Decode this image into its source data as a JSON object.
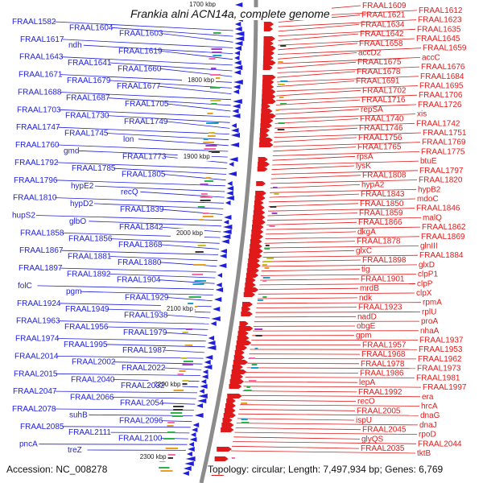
{
  "title": "Frankia alni ACN14a, complete genome",
  "accession": "Accession: NC_008278",
  "summary": "Topology: circular; Length: 7,497,934 bp; Genes: 6,769",
  "colors": {
    "left": "#1f1fdb",
    "right": "#e01a1a",
    "backbone": "#8c8c8c"
  },
  "ticks": [
    "1700 kbp",
    "1800 kbp",
    "1900 kbp",
    "2000 kbp",
    "2100 kbp",
    "2200 kbp",
    "2300 kbp"
  ],
  "left_labels": [
    "FRAAL1582",
    "FRAAL1604",
    "FRAAL1603",
    "FRAAL1617",
    "ndh",
    "FRAAL1619",
    "FRAAL1643",
    "FRAAL1641",
    "FRAAL1660",
    "FRAAL1671",
    "FRAAL1679",
    "FRAAL1677",
    "FRAAL1688",
    "FRAAL1687",
    "FRAAL1705",
    "FRAAL1703",
    "FRAAL1730",
    "FRAAL1749",
    "FRAAL1747",
    "FRAAL1745",
    "lon",
    "FRAAL1760",
    "gmd",
    "FRAAL1773",
    "FRAAL1792",
    "FRAAL1785",
    "FRAAL1805",
    "FRAAL1796",
    "hypE2",
    "recQ",
    "FRAAL1810",
    "hypD2",
    "FRAAL1839",
    "hupS2",
    "glbO",
    "FRAAL1842",
    "FRAAL1858",
    "FRAAL1856",
    "FRAAL1868",
    "FRAAL1867",
    "FRAAL1881",
    "FRAAL1880",
    "FRAAL1897",
    "FRAAL1892",
    "FRAAL1904",
    "folC",
    "pgm",
    "FRAAL1929",
    "FRAAL1924",
    "FRAAL1949",
    "FRAAL1938",
    "FRAAL1963",
    "FRAAL1956",
    "FRAAL1979",
    "FRAAL1974",
    "FRAAL1995",
    "FRAAL1987",
    "FRAAL2014",
    "FRAAL2002",
    "FRAAL2022",
    "FRAAL2015",
    "FRAAL2040",
    "FRAAL2032",
    "FRAAL2047",
    "FRAAL2066",
    "FRAAL2054",
    "FRAAL2078",
    "suhB",
    "FRAAL2096",
    "FRAAL2085",
    "FRAAL2111",
    "FRAAL2100",
    "pncA",
    "treZ"
  ],
  "right_labels": [
    "FRAAL1609",
    "FRAAL1612",
    "FRAAL1621",
    "FRAAL1623",
    "FRAAL1634",
    "FRAAL1635",
    "FRAAL1642",
    "FRAAL1645",
    "FRAAL1658",
    "FRAAL1659",
    "accD2",
    "accC",
    "FRAAL1675",
    "FRAAL1676",
    "FRAAL1678",
    "FRAAL1684",
    "FRAAL1691",
    "FRAAL1695",
    "FRAAL1702",
    "FRAAL1706",
    "FRAAL1716",
    "FRAAL1726",
    "repSA",
    "xis",
    "FRAAL1740",
    "FRAAL1742",
    "FRAAL1746",
    "FRAAL1751",
    "FRAAL1756",
    "FRAAL1769",
    "FRAAL1765",
    "FRAAL1775",
    "rpsA",
    "btuE",
    "lysK",
    "FRAAL1797",
    "FRAAL1808",
    "FRAAL1820",
    "hypA2",
    "hypB2",
    "FRAAL1843",
    "mdoC",
    "FRAAL1850",
    "FRAAL1846",
    "FRAAL1859",
    "malQ",
    "FRAAL1866",
    "FRAAL1862",
    "dkgA",
    "FRAAL1869",
    "FRAAL1878",
    "glnIII",
    "glxC",
    "FRAAL1884",
    "FRAAL1898",
    "glxD",
    "tig",
    "clpP1",
    "FRAAL1901",
    "clpP",
    "mrdB",
    "clpX",
    "ndk",
    "rpmA",
    "FRAAL1923",
    "rplU",
    "nadD",
    "proA",
    "obgE",
    "nhaA",
    "gpm",
    "FRAAL1937",
    "FRAAL1957",
    "FRAAL1953",
    "FRAAL1968",
    "FRAAL1962",
    "FRAAL1978",
    "FRAAL1973",
    "FRAAL1986",
    "FRAAL1981",
    "lepA",
    "FRAAL1997",
    "FRAAL1992",
    "era",
    "recO",
    "hrcA",
    "FRAAL2005",
    "dnaG",
    "ispU",
    "dnaJ",
    "FRAAL2045",
    "rpoD",
    "glyQS",
    "FRAAL2044",
    "FRAAL2035",
    "tktB"
  ]
}
